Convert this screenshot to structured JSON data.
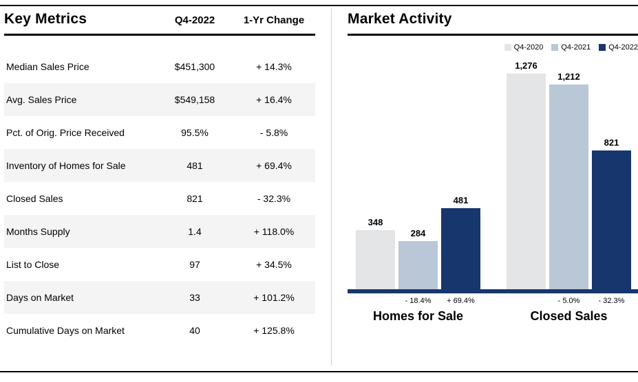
{
  "colors": {
    "navy": "#17366d",
    "light_gray_bar": "#e4e5e7",
    "blue_gray_bar": "#b9c7d6",
    "alt_row": "#f4f4f4"
  },
  "key_metrics": {
    "title": "Key Metrics",
    "col1": "Q4-2022",
    "col2": "1-Yr Change",
    "rows": [
      {
        "label": "Median Sales Price",
        "value": "$451,300",
        "change": "+ 14.3%"
      },
      {
        "label": "Avg. Sales Price",
        "value": "$549,158",
        "change": "+ 16.4%"
      },
      {
        "label": "Pct. of Orig. Price Received",
        "value": "95.5%",
        "change": "- 5.8%"
      },
      {
        "label": "Inventory of Homes for Sale",
        "value": "481",
        "change": "+ 69.4%"
      },
      {
        "label": "Closed Sales",
        "value": "821",
        "change": "- 32.3%"
      },
      {
        "label": "Months Supply",
        "value": "1.4",
        "change": "+ 118.0%"
      },
      {
        "label": "List to Close",
        "value": "97",
        "change": "+ 34.5%"
      },
      {
        "label": "Days on Market",
        "value": "33",
        "change": "+ 101.2%"
      },
      {
        "label": "Cumulative Days on Market",
        "value": "40",
        "change": "+ 125.8%"
      }
    ]
  },
  "chart_data": {
    "type": "bar",
    "title": "Market Activity",
    "categories": [
      "Homes for Sale",
      "Closed Sales"
    ],
    "series": [
      {
        "name": "Q4-2020",
        "color": "#e4e5e7",
        "values": [
          348,
          1276
        ]
      },
      {
        "name": "Q4-2021",
        "color": "#b9c7d6",
        "values": [
          284,
          1212
        ]
      },
      {
        "name": "Q4-2022",
        "color": "#17366d",
        "values": [
          481,
          821
        ]
      }
    ],
    "value_labels": [
      [
        "348",
        "284",
        "481"
      ],
      [
        "1,276",
        "1,212",
        "821"
      ]
    ],
    "change_labels": [
      [
        "",
        "- 18.4%",
        "+ 69.4%"
      ],
      [
        "",
        "- 5.0%",
        "- 32.3%"
      ]
    ],
    "ylim": [
      0,
      1340
    ],
    "legend_position": "top-right",
    "grid": false
  }
}
